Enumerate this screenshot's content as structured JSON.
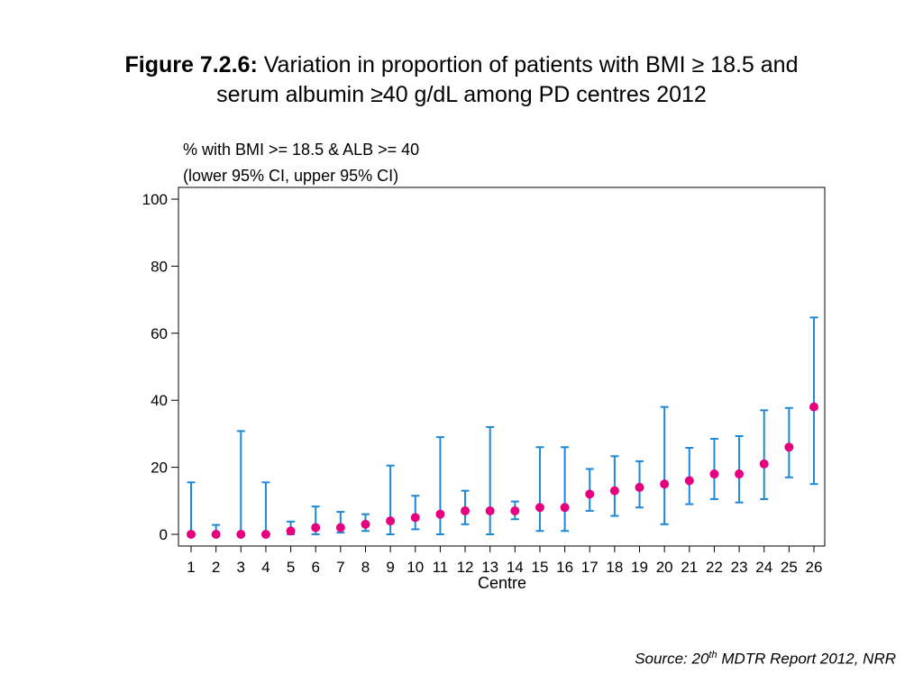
{
  "title": {
    "label": "Figure 7.2.6:",
    "line1": "Variation in proportion of patients with BMI ≥ 18.5 and",
    "line2": "serum albumin ≥40 g/dL among PD centres 2012"
  },
  "source": {
    "prefix": "Source: 20",
    "sup": "th",
    "suffix": " MDTR Report 2012, NRR"
  },
  "chart_data": {
    "type": "scatter",
    "ylabel_line1": "% with BMI >= 18.5 & ALB >= 40",
    "ylabel_line2": "(lower 95% CI, upper 95% CI)",
    "xlabel": "Centre",
    "ylim": [
      0,
      100
    ],
    "yticks": [
      0,
      20,
      40,
      60,
      80,
      100
    ],
    "categories": [
      "1",
      "2",
      "3",
      "4",
      "5",
      "6",
      "7",
      "8",
      "9",
      "10",
      "11",
      "12",
      "13",
      "14",
      "15",
      "16",
      "17",
      "18",
      "19",
      "20",
      "21",
      "22",
      "23",
      "24",
      "25",
      "26"
    ],
    "values": [
      0,
      0,
      0,
      0,
      1,
      2,
      2,
      3,
      4,
      5,
      6,
      7,
      7,
      7,
      8,
      8,
      12,
      13,
      14,
      15,
      16,
      18,
      18,
      21,
      26,
      38
    ],
    "lower": [
      0,
      0,
      0,
      0,
      0,
      0,
      0.5,
      1,
      0,
      1.5,
      0,
      3,
      0,
      4.5,
      1,
      1,
      7,
      5.5,
      8,
      3,
      9,
      10.5,
      9.5,
      10.5,
      17,
      15
    ],
    "upper": [
      15.5,
      2.8,
      30.8,
      15.5,
      3.8,
      8.3,
      6.7,
      6,
      20.5,
      11.5,
      29,
      13,
      32,
      9.8,
      26,
      26,
      19.5,
      23.3,
      21.8,
      38,
      25.8,
      28.5,
      29.3,
      37,
      37.7,
      64.7
    ],
    "colors": {
      "point": "#e6007e",
      "errorbar": "#1e88d8",
      "axis": "#000000"
    },
    "grid": false
  }
}
